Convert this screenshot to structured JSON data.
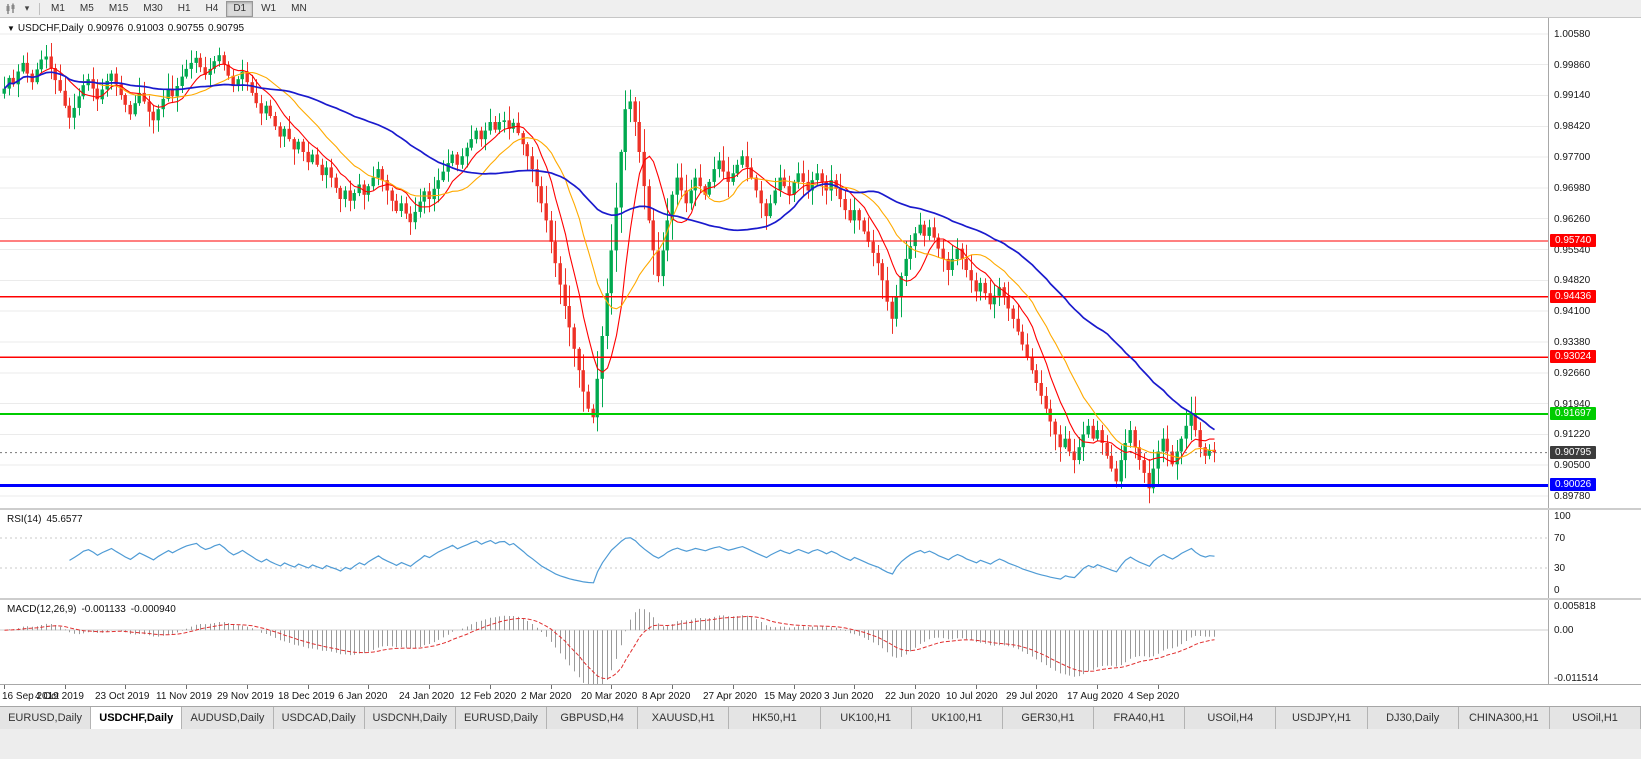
{
  "toolbar": {
    "chart_type_icon": "candlestick-chart-icon",
    "dropdown_icon": "chevron-down-icon",
    "timeframes": [
      {
        "label": "M1",
        "active": false
      },
      {
        "label": "M5",
        "active": false
      },
      {
        "label": "M15",
        "active": false
      },
      {
        "label": "M30",
        "active": false
      },
      {
        "label": "H1",
        "active": false
      },
      {
        "label": "H4",
        "active": false
      },
      {
        "label": "D1",
        "active": true
      },
      {
        "label": "W1",
        "active": false
      },
      {
        "label": "MN",
        "active": false
      }
    ]
  },
  "main_chart": {
    "symbol_label": "USDCHF,Daily",
    "open": "0.90976",
    "high": "0.91003",
    "low": "0.90755",
    "close": "0.90795",
    "price_axis": [
      "1.00580",
      "0.99860",
      "0.99140",
      "0.98420",
      "0.97700",
      "0.96980",
      "0.96260",
      "0.95540",
      "0.94820",
      "0.94100",
      "0.93380",
      "0.92660",
      "0.91940",
      "0.91220",
      "0.90500",
      "0.89780"
    ],
    "up_color": "#00A94F",
    "down_color": "#EE3227",
    "grid_color": "#ebebeb",
    "ma": [
      {
        "name": "ma-fast",
        "period": 8,
        "color": "#FF0000",
        "width": 1.1
      },
      {
        "name": "ma-mid",
        "period": 17,
        "color": "#FFAA00",
        "width": 1.1
      },
      {
        "name": "ma-slow",
        "period": 45,
        "color": "#1A1ACD",
        "width": 1.7
      }
    ],
    "levels": [
      {
        "price": 0.9574,
        "label": "0.95740",
        "color": "#FF0000",
        "width": 1.3
      },
      {
        "price": 0.94436,
        "label": "0.94436",
        "color": "#FF0000",
        "width": 1.3
      },
      {
        "price": 0.93024,
        "label": "0.93024",
        "color": "#FF0000",
        "width": 1.3
      },
      {
        "price": 0.91697,
        "label": "0.91697",
        "color": "#00CC00",
        "width": 2
      },
      {
        "price": 0.90026,
        "label": "0.90026",
        "color": "#0000FF",
        "width": 3
      }
    ],
    "current_price": {
      "price": 0.90795,
      "label": "0.90795",
      "bg": "#3C3C3C"
    }
  },
  "rsi_panel": {
    "name": "RSI(14)",
    "value": "45.6577",
    "color": "#4F9BD5",
    "axis_labels": [
      "100",
      "70",
      "30",
      "0"
    ],
    "axis_values": [
      100,
      70,
      30,
      0
    ],
    "guide_levels": [
      70,
      30
    ],
    "range": [
      0,
      100
    ]
  },
  "macd_panel": {
    "name": "MACD(12,26,9)",
    "macd_value": "-0.001133",
    "signal_value": "-0.000940",
    "axis_top": "0.005818",
    "axis_zero": "0.00",
    "axis_bottom": "-0.011514",
    "range": [
      -0.011514,
      0.005818
    ],
    "histogram_color": "#9A9A9A",
    "signal_color": "#E03030"
  },
  "tabs": [
    {
      "label": "EURUSD,Daily",
      "active": false
    },
    {
      "label": "USDCHF,Daily",
      "active": true
    },
    {
      "label": "AUDUSD,Daily",
      "active": false
    },
    {
      "label": "USDCAD,Daily",
      "active": false
    },
    {
      "label": "USDCNH,Daily",
      "active": false
    },
    {
      "label": "EURUSD,Daily",
      "active": false
    },
    {
      "label": "GBPUSD,H4",
      "active": false
    },
    {
      "label": "XAUUSD,H1",
      "active": false
    },
    {
      "label": "HK50,H1",
      "active": false
    },
    {
      "label": "UK100,H1",
      "active": false
    },
    {
      "label": "UK100,H1",
      "active": false
    },
    {
      "label": "GER30,H1",
      "active": false
    },
    {
      "label": "FRA40,H1",
      "active": false
    },
    {
      "label": "USOil,H4",
      "active": false
    },
    {
      "label": "USDJPY,H1",
      "active": false
    },
    {
      "label": "DJ30,Daily",
      "active": false
    },
    {
      "label": "CHINA300,H1",
      "active": false
    },
    {
      "label": "USOil,H1",
      "active": false
    }
  ],
  "chart_data": {
    "type": "candlestick",
    "title": "USDCHF,Daily",
    "ylim": [
      0.895,
      1.0095
    ],
    "x_tick_labels": [
      "16 Sep 2019",
      "4 Oct 2019",
      "23 Oct 2019",
      "11 Nov 2019",
      "29 Nov 2019",
      "18 Dec 2019",
      "6 Jan 2020",
      "24 Jan 2020",
      "12 Feb 2020",
      "2 Mar 2020",
      "20 Mar 2020",
      "8 Apr 2020",
      "27 Apr 2020",
      "15 May 2020",
      "3 Jun 2020",
      "22 Jun 2020",
      "10 Jul 2020",
      "29 Jul 2020",
      "17 Aug 2020",
      "4 Sep 2020"
    ],
    "bars_per_tick": 13,
    "levels": [
      0.9574,
      0.94436,
      0.93024,
      0.91697,
      0.90026
    ],
    "last_price": 0.90795,
    "indicators": {
      "rsi_last": 45.6577,
      "macd_last": -0.001133,
      "macd_signal_last": -0.00094
    },
    "closes": [
      0.993,
      0.9955,
      0.994,
      0.997,
      0.999,
      0.9965,
      0.9945,
      0.9975,
      0.9998,
      1.0005,
      0.9978,
      0.995,
      0.9925,
      0.989,
      0.9862,
      0.9885,
      0.9912,
      0.9938,
      0.9952,
      0.993,
      0.9905,
      0.9928,
      0.9948,
      0.9965,
      0.994,
      0.9915,
      0.9892,
      0.987,
      0.9896,
      0.992,
      0.99,
      0.9876,
      0.9856,
      0.9882,
      0.9906,
      0.993,
      0.9912,
      0.9936,
      0.9958,
      0.9976,
      0.999,
      1.0002,
      0.998,
      0.9962,
      0.9976,
      0.9994,
      1.0008,
      0.9986,
      0.996,
      0.9936,
      0.9952,
      0.997,
      0.9945,
      0.992,
      0.9896,
      0.9872,
      0.989,
      0.9866,
      0.9842,
      0.9818,
      0.9836,
      0.9812,
      0.9788,
      0.9806,
      0.9782,
      0.9758,
      0.9776,
      0.9752,
      0.9728,
      0.9746,
      0.9722,
      0.9698,
      0.9672,
      0.9692,
      0.9668,
      0.9686,
      0.9706,
      0.9682,
      0.9702,
      0.9722,
      0.9742,
      0.9716,
      0.9692,
      0.9668,
      0.9644,
      0.9662,
      0.9638,
      0.9618,
      0.9642,
      0.9666,
      0.969,
      0.9672,
      0.9696,
      0.9716,
      0.9736,
      0.9756,
      0.9776,
      0.9752,
      0.9772,
      0.9792,
      0.9812,
      0.9832,
      0.9812,
      0.9832,
      0.9852,
      0.9834,
      0.9852,
      0.9856,
      0.9836,
      0.985,
      0.9826,
      0.98,
      0.9772,
      0.9742,
      0.9702,
      0.9662,
      0.9622,
      0.9572,
      0.9522,
      0.9472,
      0.9422,
      0.9372,
      0.9322,
      0.9272,
      0.9222,
      0.9182,
      0.9162,
      0.9252,
      0.9352,
      0.9452,
      0.9552,
      0.9652,
      0.9782,
      0.9882,
      0.99,
      0.9852,
      0.9782,
      0.9702,
      0.9622,
      0.9552,
      0.9492,
      0.9552,
      0.9622,
      0.9682,
      0.9722,
      0.9692,
      0.9662,
      0.9692,
      0.9722,
      0.9702,
      0.9682,
      0.9712,
      0.9742,
      0.9762,
      0.9736,
      0.9712,
      0.9732,
      0.9752,
      0.9772,
      0.9746,
      0.9722,
      0.9692,
      0.9662,
      0.9632,
      0.9662,
      0.9692,
      0.9722,
      0.9702,
      0.9682,
      0.9712,
      0.9732,
      0.9712,
      0.9692,
      0.9716,
      0.9732,
      0.9712,
      0.9692,
      0.9716,
      0.9696,
      0.9672,
      0.9646,
      0.9622,
      0.9646,
      0.9622,
      0.9596,
      0.9572,
      0.9546,
      0.9522,
      0.9482,
      0.9432,
      0.9392,
      0.9442,
      0.9492,
      0.9532,
      0.9562,
      0.9592,
      0.9612,
      0.9586,
      0.9606,
      0.9582,
      0.9556,
      0.9532,
      0.9506,
      0.9532,
      0.9556,
      0.9532,
      0.9506,
      0.9482,
      0.9456,
      0.9476,
      0.9452,
      0.9426,
      0.9446,
      0.9466,
      0.9442,
      0.9416,
      0.9392,
      0.9362,
      0.9332,
      0.9302,
      0.9272,
      0.9242,
      0.9212,
      0.9182,
      0.9152,
      0.9122,
      0.9092,
      0.9112,
      0.9082,
      0.9062,
      0.9092,
      0.9122,
      0.9142,
      0.9112,
      0.9132,
      0.9102,
      0.9072,
      0.9042,
      0.9012,
      0.9062,
      0.9102,
      0.9132,
      0.9092,
      0.9062,
      0.9032,
      0.8996,
      0.9042,
      0.9082,
      0.9112,
      0.9082,
      0.9052,
      0.9082,
      0.9112,
      0.9142,
      0.9172,
      0.9132,
      0.9092,
      0.9072,
      0.9086,
      0.908
    ]
  }
}
